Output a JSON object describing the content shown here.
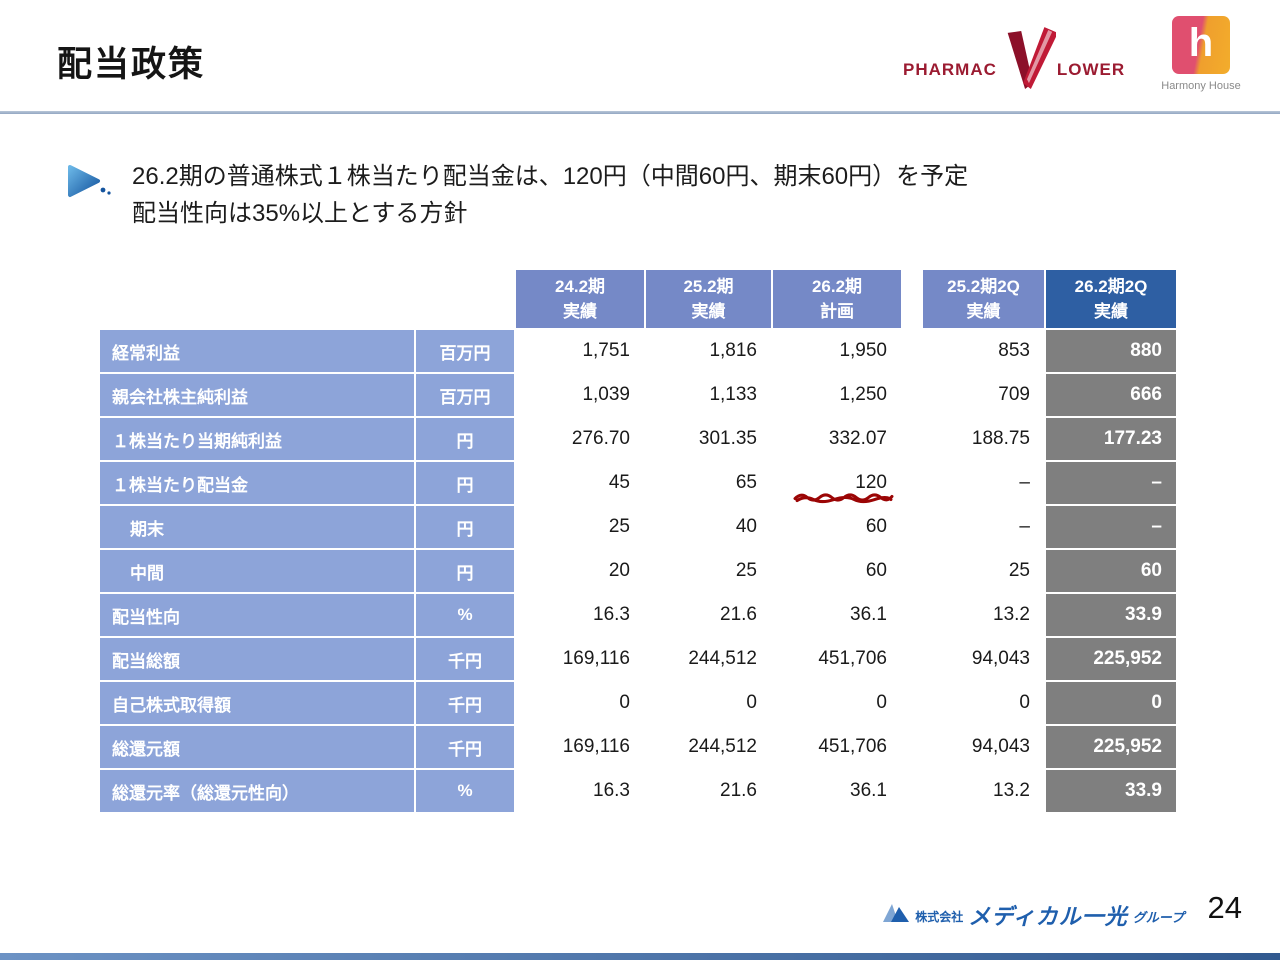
{
  "slide": {
    "title": "配当政策",
    "page_number": "24"
  },
  "header_logos": {
    "pharmacy_flower": {
      "text_left": "PHARMAC",
      "text_right": "LOWER"
    },
    "harmony_house": {
      "letter": "h",
      "caption": "Harmony House"
    }
  },
  "bullet": {
    "line1": "26.2期の普通株式１株当たり配当金は、120円（中間60円、期末60円）を予定",
    "line2": "配当性向は35%以上とする方針"
  },
  "table": {
    "col_headers": [
      {
        "period": "24.2期",
        "kind": "実績",
        "dark": false
      },
      {
        "period": "25.2期",
        "kind": "実績",
        "dark": false
      },
      {
        "period": "26.2期",
        "kind": "計画",
        "dark": false
      },
      {
        "period": "25.2期2Q",
        "kind": "実績",
        "dark": false
      },
      {
        "period": "26.2期2Q",
        "kind": "実績",
        "dark": true
      }
    ],
    "rows": [
      {
        "label": "経常利益",
        "unit": "百万円",
        "indent": false,
        "values": [
          "1,751",
          "1,816",
          "1,950",
          "853",
          "880"
        ]
      },
      {
        "label": "親会社株主純利益",
        "unit": "百万円",
        "indent": false,
        "values": [
          "1,039",
          "1,133",
          "1,250",
          "709",
          "666"
        ]
      },
      {
        "label": "１株当たり当期純利益",
        "unit": "円",
        "indent": false,
        "values": [
          "276.70",
          "301.35",
          "332.07",
          "188.75",
          "177.23"
        ]
      },
      {
        "label": "１株当たり配当金",
        "unit": "円",
        "indent": false,
        "underline_col": 2,
        "values": [
          "45",
          "65",
          "120",
          "–",
          "–"
        ]
      },
      {
        "label": "期末",
        "unit": "円",
        "indent": true,
        "values": [
          "25",
          "40",
          "60",
          "–",
          "–"
        ]
      },
      {
        "label": "中間",
        "unit": "円",
        "indent": true,
        "values": [
          "20",
          "25",
          "60",
          "25",
          "60"
        ]
      },
      {
        "label": "配当性向",
        "unit": "%",
        "indent": false,
        "values": [
          "16.3",
          "21.6",
          "36.1",
          "13.2",
          "33.9"
        ]
      },
      {
        "label": "配当総額",
        "unit": "千円",
        "indent": false,
        "values": [
          "169,116",
          "244,512",
          "451,706",
          "94,043",
          "225,952"
        ]
      },
      {
        "label": "自己株式取得額",
        "unit": "千円",
        "indent": false,
        "values": [
          "0",
          "0",
          "0",
          "0",
          "0"
        ]
      },
      {
        "label": "総還元額",
        "unit": "千円",
        "indent": false,
        "values": [
          "169,116",
          "244,512",
          "451,706",
          "94,043",
          "225,952"
        ]
      },
      {
        "label": "総還元率（総還元性向）",
        "unit": "%",
        "indent": false,
        "values": [
          "16.3",
          "21.6",
          "36.1",
          "13.2",
          "33.9"
        ]
      }
    ]
  },
  "footer": {
    "company_prefix": "株式会社",
    "company_name_main": "メディカル一光",
    "company_name_suffix": "グループ"
  },
  "colors": {
    "header_blue": "#7589c7",
    "label_blue": "#8da4d9",
    "dark_header_blue": "#2e5fa3",
    "highlight_gray": "#7f7f7f",
    "scribble_red": "#9b0505",
    "rule_blue": "#9aaec6",
    "footer_blue": "#1f5fad"
  }
}
